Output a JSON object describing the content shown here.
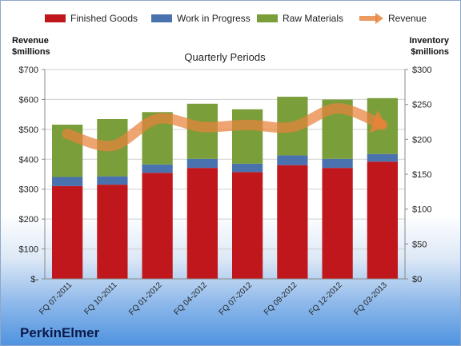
{
  "company": "PerkinElmer",
  "chart_data": {
    "type": "bar",
    "title": "Quarterly Periods",
    "y_left_label": [
      "Revenue",
      "$millions"
    ],
    "y_right_label": [
      "Inventory",
      "$millions"
    ],
    "categories": [
      "FQ 07-2011",
      "FQ 10-2011",
      "FQ 01-2012",
      "FQ 04-2012",
      "FQ 07-2012",
      "FQ 09-2012",
      "FQ 12-2012",
      "FQ 03-2013"
    ],
    "stacked": true,
    "series": [
      {
        "name": "Finished Goods",
        "axis": "right",
        "color": "#c0171c",
        "values": [
          133,
          135,
          152,
          159,
          153,
          163,
          159,
          168
        ]
      },
      {
        "name": "Work in Progress",
        "axis": "right",
        "color": "#4a72ae",
        "values": [
          13,
          12,
          12,
          13,
          12,
          14,
          13,
          11
        ]
      },
      {
        "name": "Raw Materials",
        "axis": "right",
        "color": "#7a9e3a",
        "values": [
          75,
          82,
          75,
          79,
          78,
          84,
          85,
          80
        ]
      },
      {
        "name": "Revenue",
        "axis": "left",
        "type": "line",
        "color": "#e8823b",
        "values": [
          485,
          445,
          535,
          508,
          515,
          508,
          570,
          515
        ]
      }
    ],
    "y_left": {
      "min": 0,
      "max": 700,
      "step": 100,
      "tick_labels": [
        "$-",
        "$100",
        "$200",
        "$300",
        "$400",
        "$500",
        "$600",
        "$700"
      ]
    },
    "y_right": {
      "min": 0,
      "max": 300,
      "step": 50,
      "tick_labels": [
        "$0",
        "$50",
        "$100",
        "$150",
        "$200",
        "$250",
        "$300"
      ]
    },
    "grid": true,
    "legend": "top"
  }
}
